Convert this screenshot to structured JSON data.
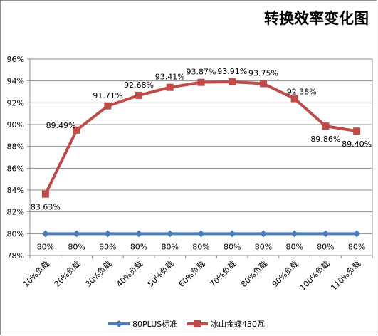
{
  "chart_data": {
    "type": "line",
    "title": "转换效率变化图",
    "categories": [
      "10%负载",
      "20%负载",
      "30%负载",
      "40%负载",
      "50%负载",
      "60%负载",
      "70%负载",
      "80%负载",
      "90%负载",
      "100%负载",
      "110%负载"
    ],
    "ylim": [
      78,
      96
    ],
    "yticks": [
      "78%",
      "80%",
      "82%",
      "84%",
      "86%",
      "88%",
      "90%",
      "92%",
      "94%",
      "96%"
    ],
    "grid": true,
    "legend_position": "bottom",
    "series": [
      {
        "name": "80PLUS标准",
        "values": [
          80,
          80,
          80,
          80,
          80,
          80,
          80,
          80,
          80,
          80,
          80
        ],
        "labels": [
          "80%",
          "80%",
          "80%",
          "80%",
          "80%",
          "80%",
          "80%",
          "80%",
          "80%",
          "80%",
          "80%"
        ],
        "color": "#4a7ebb",
        "marker": "diamond"
      },
      {
        "name": "冰山金蝶430瓦",
        "values": [
          83.63,
          89.49,
          91.71,
          92.68,
          93.41,
          93.87,
          93.91,
          93.75,
          92.38,
          89.86,
          89.4
        ],
        "labels": [
          "83.63%",
          "89.49%",
          "91.71%",
          "92.68%",
          "93.41%",
          "93.87%",
          "93.91%",
          "93.75%",
          "92.38%",
          "89.86%",
          "89.40%"
        ],
        "color": "#be4b48",
        "marker": "square"
      }
    ]
  }
}
